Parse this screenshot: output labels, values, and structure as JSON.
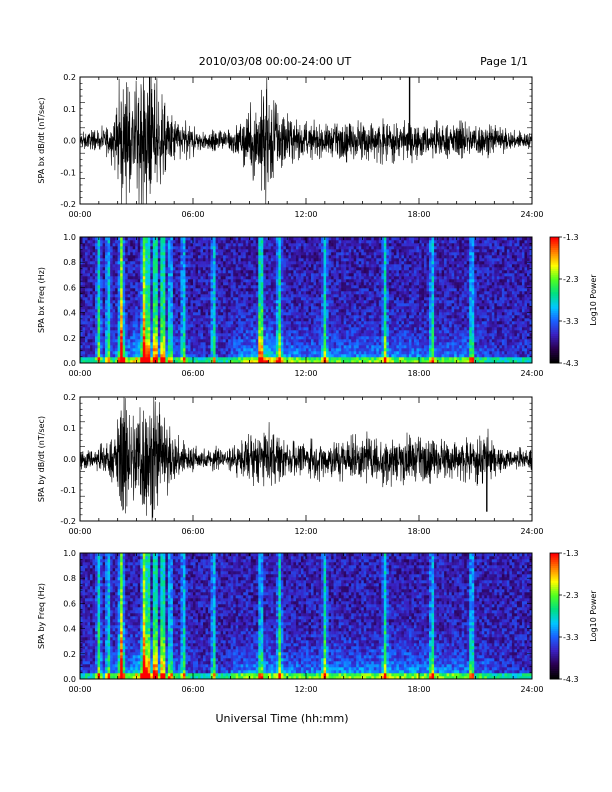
{
  "header": {
    "title": "2010/03/08  00:00-24:00 UT",
    "page": "Page 1/1"
  },
  "x_axis_label": "Universal Time (hh:mm)",
  "colorbar": {
    "label": "Log10 Power",
    "ticks": [
      "-1.3",
      "-2.3",
      "-3.3",
      "-4.3"
    ],
    "range": [
      -4.3,
      -1.3
    ],
    "colors": [
      "#000000",
      "#2a0050",
      "#3a20c0",
      "#1a60ff",
      "#00c8ff",
      "#00e080",
      "#50ff20",
      "#ffff00",
      "#ff8000",
      "#ff0000"
    ]
  },
  "chart_data": [
    {
      "type": "line",
      "panel": "bx-dbdt",
      "ylabel": "SPA bx dB/dt (nT/sec)",
      "xlabel": "",
      "x_ticks": [
        "00:00",
        "06:00",
        "12:00",
        "18:00",
        "24:00"
      ],
      "y_ticks": [
        "0.2",
        "0.1",
        "0.0",
        "-0.1",
        "-0.2"
      ],
      "xlim": [
        0,
        24
      ],
      "ylim": [
        -0.2,
        0.2
      ],
      "envelope": {
        "hours": [
          0,
          1,
          1.8,
          2.2,
          2.6,
          3.0,
          3.4,
          3.8,
          4.2,
          4.6,
          5.0,
          5.6,
          6.5,
          7.5,
          8.5,
          9.0,
          9.5,
          9.9,
          10.3,
          11,
          12,
          13,
          14,
          15,
          16,
          17,
          17.5,
          18,
          19,
          20,
          21,
          21.5,
          22,
          23,
          24
        ],
        "amplitude": [
          0.025,
          0.03,
          0.06,
          0.2,
          0.12,
          0.2,
          0.2,
          0.2,
          0.14,
          0.1,
          0.08,
          0.05,
          0.03,
          0.035,
          0.05,
          0.09,
          0.13,
          0.2,
          0.12,
          0.07,
          0.05,
          0.05,
          0.055,
          0.06,
          0.06,
          0.055,
          0.05,
          0.05,
          0.05,
          0.05,
          0.055,
          0.05,
          0.04,
          0.03,
          0.025
        ]
      },
      "spikes": [
        {
          "hour": 17.5,
          "value": 0.2
        }
      ]
    },
    {
      "type": "heatmap",
      "panel": "bx-freq",
      "ylabel": "SPA bx Freq (Hz)",
      "xlabel": "",
      "x_ticks": [
        "00:00",
        "06:00",
        "12:00",
        "18:00",
        "24:00"
      ],
      "y_ticks": [
        "1.0",
        "0.8",
        "0.6",
        "0.4",
        "0.2",
        "0.0"
      ],
      "xlim": [
        0,
        24
      ],
      "ylim": [
        0,
        1.0
      ],
      "bright_bands_hours": [
        1.0,
        1.5,
        2.2,
        3.4,
        3.6,
        4.0,
        4.4,
        4.8,
        5.5,
        7.1,
        9.6,
        10.6,
        13.0,
        16.2,
        18.7,
        20.8
      ]
    },
    {
      "type": "line",
      "panel": "by-dbdt",
      "ylabel": "SPA by dB/dt (nT/sec)",
      "xlabel": "",
      "x_ticks": [
        "00:00",
        "06:00",
        "12:00",
        "18:00",
        "24:00"
      ],
      "y_ticks": [
        "0.2",
        "0.1",
        "0.0",
        "-0.1",
        "-0.2"
      ],
      "xlim": [
        0,
        24
      ],
      "ylim": [
        -0.2,
        0.2
      ],
      "envelope": {
        "hours": [
          0,
          1,
          1.8,
          2.2,
          2.6,
          3.0,
          3.4,
          3.8,
          4.2,
          4.6,
          5.0,
          5.6,
          6.5,
          7.5,
          8.5,
          9.0,
          9.5,
          10.0,
          10.5,
          11,
          12,
          13,
          14,
          15,
          16,
          17,
          18,
          19,
          20,
          21,
          21.5,
          22,
          23,
          24
        ],
        "amplitude": [
          0.03,
          0.035,
          0.07,
          0.2,
          0.12,
          0.2,
          0.2,
          0.2,
          0.15,
          0.1,
          0.08,
          0.05,
          0.03,
          0.035,
          0.05,
          0.07,
          0.08,
          0.09,
          0.07,
          0.055,
          0.05,
          0.06,
          0.07,
          0.07,
          0.07,
          0.08,
          0.07,
          0.06,
          0.06,
          0.06,
          0.1,
          0.04,
          0.03,
          0.03
        ]
      },
      "spikes": [
        {
          "hour": 21.6,
          "value": -0.17
        }
      ]
    },
    {
      "type": "heatmap",
      "panel": "by-freq",
      "ylabel": "SPA by Freq (Hz)",
      "xlabel": "",
      "x_ticks": [
        "00:00",
        "06:00",
        "12:00",
        "18:00",
        "24:00"
      ],
      "y_ticks": [
        "1.0",
        "0.8",
        "0.6",
        "0.4",
        "0.2",
        "0.0"
      ],
      "xlim": [
        0,
        24
      ],
      "ylim": [
        0,
        1.0
      ],
      "bright_bands_hours": [
        1.0,
        1.5,
        2.2,
        3.4,
        3.6,
        4.0,
        4.4,
        4.8,
        5.5,
        7.1,
        9.6,
        10.6,
        13.0,
        16.2,
        18.7,
        20.8
      ]
    }
  ]
}
